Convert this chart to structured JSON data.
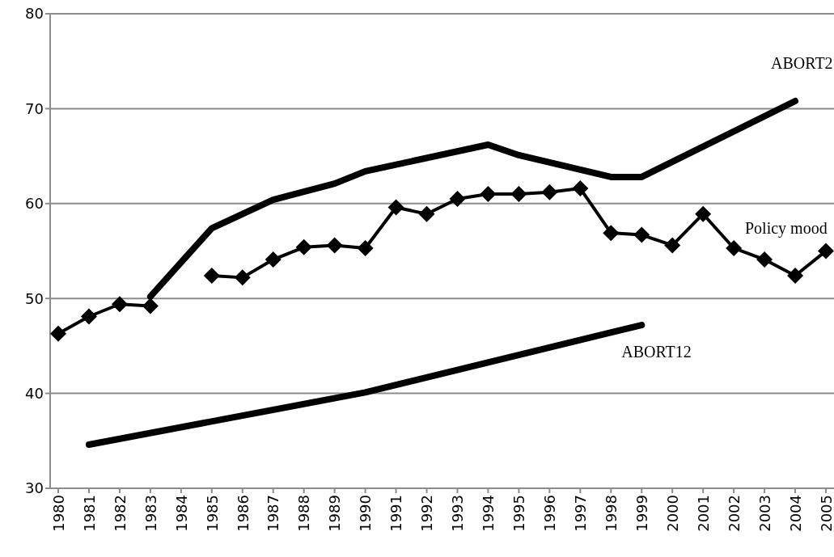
{
  "chart_data": {
    "type": "line",
    "categories": [
      "1980",
      "1981",
      "1982",
      "1983",
      "1984",
      "1985",
      "1986",
      "1987",
      "1988",
      "1989",
      "1990",
      "1991",
      "1992",
      "1993",
      "1994",
      "1995",
      "1996",
      "1997",
      "1998",
      "1999",
      "2000",
      "2001",
      "2002",
      "2003",
      "2004",
      "2005"
    ],
    "series": [
      {
        "name": "Policy mood",
        "color": "#000000",
        "marker": "diamond",
        "values": [
          46.3,
          48.1,
          49.4,
          49.2,
          null,
          52.4,
          52.2,
          54.1,
          55.4,
          55.6,
          55.3,
          59.6,
          58.9,
          60.5,
          61.0,
          61.0,
          61.2,
          61.6,
          56.9,
          56.7,
          55.6,
          58.9,
          55.3,
          54.1,
          52.4,
          55.0
        ]
      },
      {
        "name": "ABORT2",
        "color": "#000000",
        "marker": "none",
        "values": [
          null,
          null,
          null,
          50.2,
          null,
          57.4,
          null,
          60.4,
          null,
          62.1,
          63.4,
          null,
          null,
          null,
          66.2,
          65.1,
          null,
          null,
          62.8,
          62.8,
          null,
          null,
          null,
          null,
          70.8,
          null
        ]
      },
      {
        "name": "ABORT12",
        "color": "#000000",
        "marker": "none",
        "values": [
          null,
          34.6,
          null,
          null,
          null,
          null,
          null,
          null,
          null,
          null,
          40.1,
          null,
          null,
          null,
          null,
          null,
          null,
          null,
          null,
          47.2,
          null,
          null,
          null,
          null,
          null,
          null
        ]
      }
    ],
    "ylim": [
      30,
      80
    ],
    "yticks": [
      30,
      40,
      50,
      60,
      70,
      80
    ],
    "grid": "y"
  }
}
